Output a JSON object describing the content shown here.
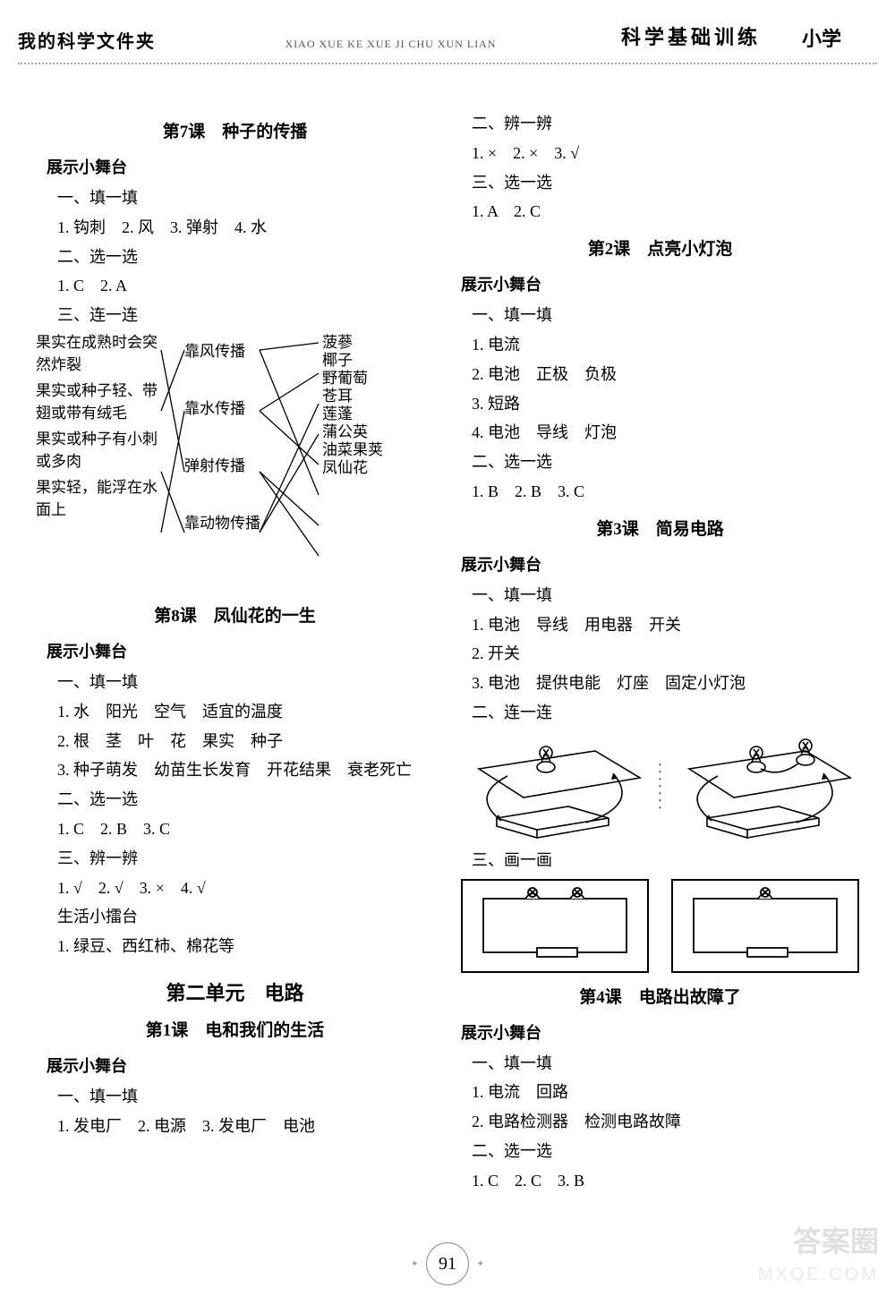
{
  "header": {
    "left": "我的科学文件夹",
    "pinyin": "XIAO XUE KE XUE JI CHU XUN LIAN",
    "badge": "科学基础训练",
    "badge2": "小学"
  },
  "page_number": "91",
  "watermark1": "答案圈",
  "watermark2": "MXQE.COM",
  "left": {
    "l7": {
      "title": "第7课　种子的传播",
      "stage": "展示小舞台",
      "s1_h": "一、填一填",
      "s1_1": "1. 钩刺　2. 风　3. 弹射　4. 水",
      "s2_h": "二、选一选",
      "s2_1": "1. C　2. A",
      "s3_h": "三、连一连",
      "match": {
        "col1": [
          "果实在成熟时会突然炸裂",
          "果实或种子轻、带翅或带有绒毛",
          "果实或种子有小刺或多肉",
          "果实轻，能浮在水面上"
        ],
        "col2": [
          "靠风传播",
          "靠水传播",
          "弹射传播",
          "靠动物传播"
        ],
        "col3": [
          "菠蔘",
          "椰子",
          "野葡萄",
          "苍耳",
          "莲蓬",
          "蒲公英",
          "油菜果荚",
          "凤仙花"
        ],
        "line_color": "#000",
        "line_width": 1.3,
        "edges13": [
          [
            0,
            0
          ],
          [
            0,
            2
          ],
          [
            1,
            4
          ],
          [
            2,
            1
          ],
          [
            3,
            3
          ]
        ],
        "edges13b": [
          [
            0,
            5
          ],
          [
            0,
            0
          ],
          [
            1,
            1
          ],
          [
            1,
            4
          ],
          [
            2,
            6
          ],
          [
            2,
            7
          ],
          [
            3,
            2
          ],
          [
            3,
            3
          ]
        ]
      }
    },
    "l8": {
      "title": "第8课　凤仙花的一生",
      "stage": "展示小舞台",
      "s1_h": "一、填一填",
      "s1_1": "1. 水　阳光　空气　适宜的温度",
      "s1_2": "2. 根　茎　叶　花　果实　种子",
      "s1_3": "3. 种子萌发　幼苗生长发育　开花结果　衰老死亡",
      "s2_h": "二、选一选",
      "s2_1": "1. C　2. B　3. C",
      "s3_h": "三、辨一辨",
      "s3_1": "1. √　2. √　3. ×　4. √",
      "life_h": "生活小擂台",
      "life_1": "1. 绿豆、西红柿、棉花等"
    },
    "unit2": {
      "title": "第二单元　电路",
      "l1_title": "第1课　电和我们的生活",
      "stage": "展示小舞台",
      "s1_h": "一、填一填",
      "s1_1": "1. 发电厂　2. 电源　3. 发电厂　电池"
    }
  },
  "right": {
    "cont1": {
      "s2_h": "二、辨一辨",
      "s2_1": "1. ×　2. ×　3. √",
      "s3_h": "三、选一选",
      "s3_1": "1. A　2. C"
    },
    "l2": {
      "title": "第2课　点亮小灯泡",
      "stage": "展示小舞台",
      "s1_h": "一、填一填",
      "s1_1": "1. 电流",
      "s1_2": "2. 电池　正极　负极",
      "s1_3": "3. 短路",
      "s1_4": "4. 电池　导线　灯泡",
      "s2_h": "二、选一选",
      "s2_1": "1. B　2. B　3. C"
    },
    "l3": {
      "title": "第3课　简易电路",
      "stage": "展示小舞台",
      "s1_h": "一、填一填",
      "s1_1": "1. 电池　导线　用电器　开关",
      "s1_2": "2. 开关",
      "s1_3": "3. 电池　提供电能　灯座　固定小灯泡",
      "s2_h": "二、连一连",
      "s3_h": "三、画一画",
      "circuit": {
        "stroke": "#000",
        "stroke_width": 1.6
      }
    },
    "l4": {
      "title": "第4课　电路出故障了",
      "stage": "展示小舞台",
      "s1_h": "一、填一填",
      "s1_1": "1. 电流　回路",
      "s1_2": "2. 电路检测器　检测电路故障",
      "s2_h": "二、选一选",
      "s2_1": "1. C　2. C　3. B"
    }
  }
}
